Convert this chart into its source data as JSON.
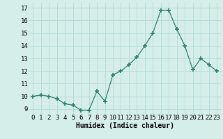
{
  "x": [
    0,
    1,
    2,
    3,
    4,
    5,
    6,
    7,
    8,
    9,
    10,
    11,
    12,
    13,
    14,
    15,
    16,
    17,
    18,
    19,
    20,
    21,
    22,
    23
  ],
  "y": [
    10.0,
    10.1,
    10.0,
    9.8,
    9.4,
    9.3,
    8.9,
    8.9,
    10.4,
    9.6,
    11.7,
    12.0,
    12.5,
    13.1,
    14.0,
    15.0,
    16.8,
    16.8,
    15.3,
    14.0,
    12.1,
    13.0,
    12.5,
    12.0
  ],
  "xlabel": "Humidex (Indice chaleur)",
  "ylabel_ticks": [
    9,
    10,
    11,
    12,
    13,
    14,
    15,
    16,
    17
  ],
  "xlim": [
    -0.5,
    23.5
  ],
  "ylim": [
    8.6,
    17.4
  ],
  "line_color": "#2e7d6e",
  "marker_color": "#2e7d6e",
  "bg_color": "#d5eeea",
  "grid_color": "#b8ddd7",
  "xlabel_fontsize": 7,
  "tick_fontsize": 6.5
}
